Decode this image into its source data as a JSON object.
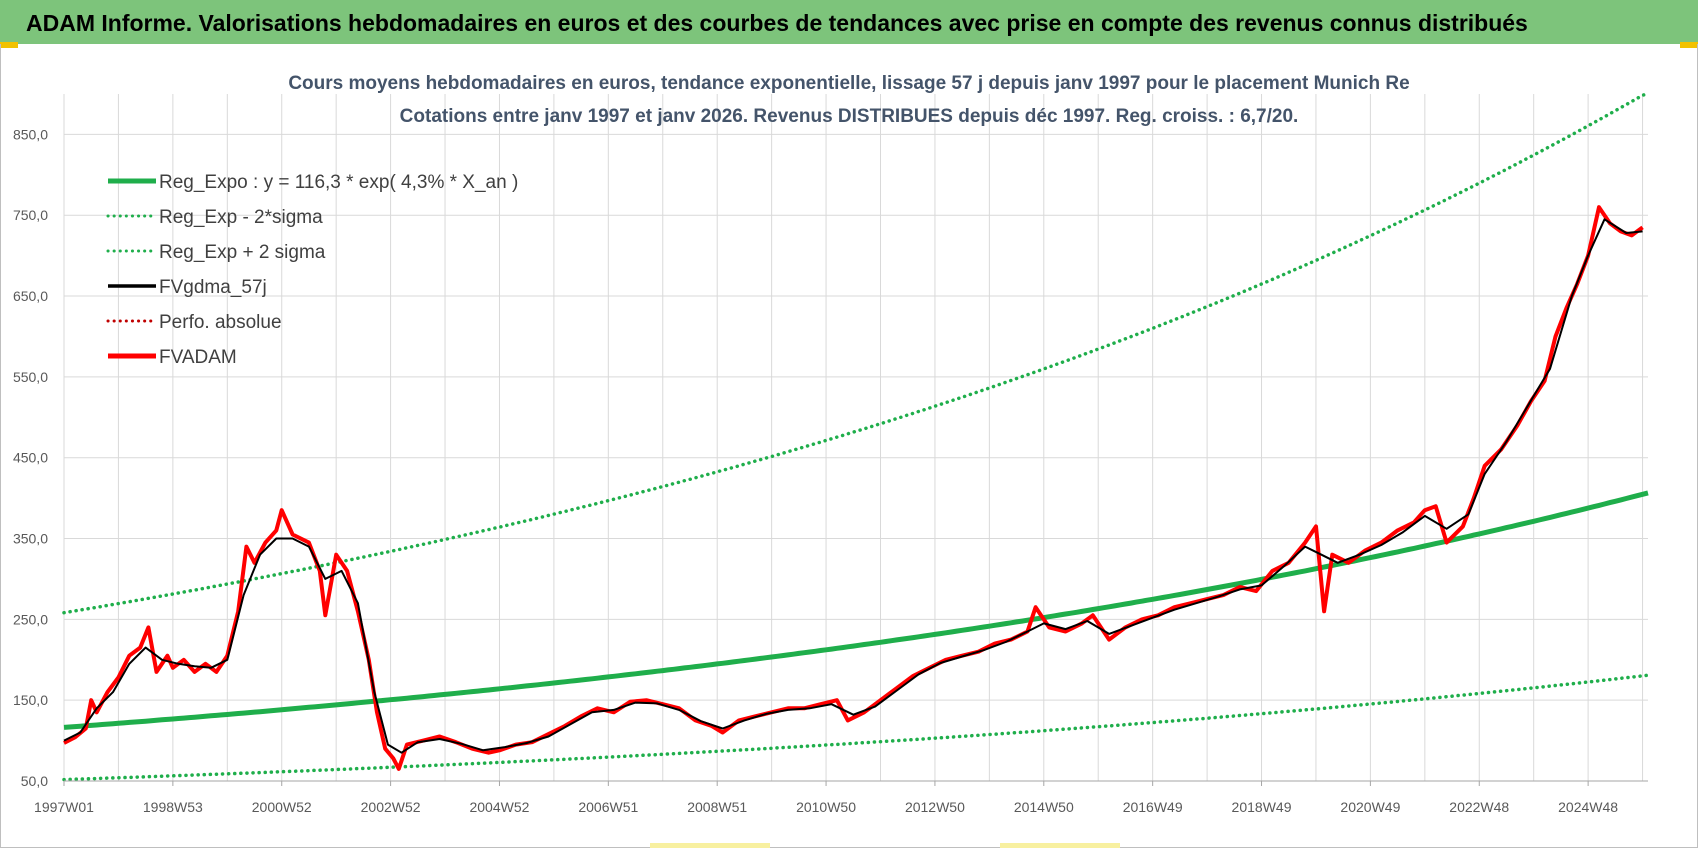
{
  "header": {
    "title": "ADAM Informe. Valorisations hebdomadaires en euros et des courbes de tendances avec prise en compte des revenus connus distribués"
  },
  "colors": {
    "banner": "#7dc47b",
    "trend": "#1fae4b",
    "smooth": "#000000",
    "price": "#ff0000",
    "perf": "#c00000",
    "grid": "#d9d9d9"
  },
  "chart_data": {
    "type": "line",
    "title_line1": "Cours moyens hebdomadaires en euros, tendance exponentielle, lissage 57 j depuis janv 1997 pour le placement Munich Re",
    "title_line2": "Cotations entre janv 1997 et janv 2026. Revenus DISTRIBUES depuis déc 1997. Reg. croiss. : 6,7/20.",
    "x_tick_labels": [
      "1997W01",
      "1998W53",
      "2000W52",
      "2002W52",
      "2004W52",
      "2006W51",
      "2008W51",
      "2010W50",
      "2012W50",
      "2014W50",
      "2016W49",
      "2018W49",
      "2020W49",
      "2022W48",
      "2024W48"
    ],
    "y_tick_labels": [
      "50,0",
      "150,0",
      "250,0",
      "350,0",
      "450,0",
      "550,0",
      "650,0",
      "750,0",
      "850,0"
    ],
    "y_ticks": [
      50,
      150,
      250,
      350,
      450,
      550,
      650,
      750,
      850
    ],
    "xlim": [
      1997.0,
      2026.1
    ],
    "ylim": [
      50,
      900
    ],
    "grid": true,
    "legend_position": "top-left",
    "legend": [
      {
        "label": "Reg_Expo : y = 116,3 * exp( 4,3% *  X_an )",
        "style": "solid-thick",
        "color": "#1fae4b"
      },
      {
        "label": "Reg_Exp - 2*sigma",
        "style": "dotted",
        "color": "#1fae4b"
      },
      {
        "label": "Reg_Exp + 2 sigma",
        "style": "dotted",
        "color": "#1fae4b"
      },
      {
        "label": "FVgdma_57j",
        "style": "solid",
        "color": "#000000"
      },
      {
        "label": "Perfo. absolue",
        "style": "dotted",
        "color": "#c00000"
      },
      {
        "label": "FVADAM",
        "style": "solid-thick",
        "color": "#ff0000"
      }
    ],
    "trend": {
      "a": 116.3,
      "rate": 0.043,
      "lower_factor": 0.445,
      "upper_factor": 2.22
    },
    "series": [
      {
        "name": "FVADAM",
        "points": [
          [
            1997.0,
            97
          ],
          [
            1997.2,
            104
          ],
          [
            1997.4,
            115
          ],
          [
            1997.5,
            150
          ],
          [
            1997.6,
            135
          ],
          [
            1997.8,
            160
          ],
          [
            1998.0,
            178
          ],
          [
            1998.2,
            205
          ],
          [
            1998.4,
            215
          ],
          [
            1998.55,
            240
          ],
          [
            1998.7,
            185
          ],
          [
            1998.9,
            205
          ],
          [
            1999.0,
            190
          ],
          [
            1999.2,
            200
          ],
          [
            1999.4,
            185
          ],
          [
            1999.6,
            195
          ],
          [
            1999.8,
            185
          ],
          [
            2000.0,
            205
          ],
          [
            2000.2,
            260
          ],
          [
            2000.35,
            340
          ],
          [
            2000.5,
            320
          ],
          [
            2000.7,
            345
          ],
          [
            2000.9,
            360
          ],
          [
            2001.0,
            385
          ],
          [
            2001.2,
            355
          ],
          [
            2001.5,
            345
          ],
          [
            2001.7,
            310
          ],
          [
            2001.8,
            255
          ],
          [
            2002.0,
            330
          ],
          [
            2002.2,
            310
          ],
          [
            2002.4,
            260
          ],
          [
            2002.6,
            200
          ],
          [
            2002.75,
            135
          ],
          [
            2002.9,
            90
          ],
          [
            2003.05,
            78
          ],
          [
            2003.15,
            65
          ],
          [
            2003.3,
            95
          ],
          [
            2003.6,
            100
          ],
          [
            2003.9,
            105
          ],
          [
            2004.2,
            98
          ],
          [
            2004.5,
            90
          ],
          [
            2004.8,
            85
          ],
          [
            2005.0,
            88
          ],
          [
            2005.3,
            95
          ],
          [
            2005.6,
            98
          ],
          [
            2005.9,
            108
          ],
          [
            2006.2,
            118
          ],
          [
            2006.5,
            130
          ],
          [
            2006.8,
            140
          ],
          [
            2007.1,
            135
          ],
          [
            2007.4,
            148
          ],
          [
            2007.7,
            150
          ],
          [
            2008.0,
            145
          ],
          [
            2008.3,
            140
          ],
          [
            2008.6,
            125
          ],
          [
            2008.9,
            118
          ],
          [
            2009.1,
            110
          ],
          [
            2009.4,
            125
          ],
          [
            2009.7,
            130
          ],
          [
            2010.0,
            135
          ],
          [
            2010.3,
            140
          ],
          [
            2010.6,
            140
          ],
          [
            2010.9,
            145
          ],
          [
            2011.2,
            150
          ],
          [
            2011.4,
            125
          ],
          [
            2011.7,
            135
          ],
          [
            2012.0,
            150
          ],
          [
            2012.3,
            165
          ],
          [
            2012.6,
            180
          ],
          [
            2012.9,
            190
          ],
          [
            2013.2,
            200
          ],
          [
            2013.5,
            205
          ],
          [
            2013.8,
            210
          ],
          [
            2014.1,
            220
          ],
          [
            2014.4,
            225
          ],
          [
            2014.7,
            235
          ],
          [
            2014.85,
            265
          ],
          [
            2015.1,
            240
          ],
          [
            2015.4,
            235
          ],
          [
            2015.7,
            245
          ],
          [
            2015.9,
            255
          ],
          [
            2016.2,
            225
          ],
          [
            2016.5,
            240
          ],
          [
            2016.8,
            250
          ],
          [
            2017.1,
            255
          ],
          [
            2017.4,
            265
          ],
          [
            2017.7,
            270
          ],
          [
            2018.0,
            275
          ],
          [
            2018.3,
            280
          ],
          [
            2018.6,
            290
          ],
          [
            2018.9,
            285
          ],
          [
            2019.2,
            310
          ],
          [
            2019.5,
            320
          ],
          [
            2019.8,
            345
          ],
          [
            2020.0,
            365
          ],
          [
            2020.15,
            260
          ],
          [
            2020.3,
            330
          ],
          [
            2020.6,
            320
          ],
          [
            2020.9,
            335
          ],
          [
            2021.2,
            345
          ],
          [
            2021.5,
            360
          ],
          [
            2021.8,
            370
          ],
          [
            2022.0,
            385
          ],
          [
            2022.2,
            390
          ],
          [
            2022.4,
            345
          ],
          [
            2022.7,
            365
          ],
          [
            2022.9,
            400
          ],
          [
            2023.1,
            440
          ],
          [
            2023.4,
            460
          ],
          [
            2023.7,
            490
          ],
          [
            2023.95,
            520
          ],
          [
            2024.2,
            545
          ],
          [
            2024.4,
            600
          ],
          [
            2024.6,
            635
          ],
          [
            2024.8,
            665
          ],
          [
            2025.0,
            700
          ],
          [
            2025.2,
            760
          ],
          [
            2025.4,
            740
          ],
          [
            2025.6,
            730
          ],
          [
            2025.8,
            725
          ],
          [
            2026.0,
            735
          ]
        ]
      },
      {
        "name": "FVgdma_57j",
        "points": [
          [
            1997.0,
            100
          ],
          [
            1997.3,
            110
          ],
          [
            1997.6,
            140
          ],
          [
            1997.9,
            160
          ],
          [
            1998.2,
            195
          ],
          [
            1998.5,
            215
          ],
          [
            1998.8,
            200
          ],
          [
            1999.1,
            195
          ],
          [
            1999.4,
            192
          ],
          [
            1999.7,
            190
          ],
          [
            2000.0,
            200
          ],
          [
            2000.3,
            280
          ],
          [
            2000.6,
            330
          ],
          [
            2000.9,
            350
          ],
          [
            2001.2,
            350
          ],
          [
            2001.5,
            340
          ],
          [
            2001.8,
            300
          ],
          [
            2002.1,
            310
          ],
          [
            2002.4,
            270
          ],
          [
            2002.7,
            160
          ],
          [
            2002.95,
            95
          ],
          [
            2003.2,
            85
          ],
          [
            2003.5,
            98
          ],
          [
            2003.9,
            102
          ],
          [
            2004.3,
            96
          ],
          [
            2004.7,
            88
          ],
          [
            2005.1,
            92
          ],
          [
            2005.5,
            97
          ],
          [
            2005.9,
            105
          ],
          [
            2006.3,
            120
          ],
          [
            2006.7,
            135
          ],
          [
            2007.1,
            138
          ],
          [
            2007.5,
            147
          ],
          [
            2007.9,
            146
          ],
          [
            2008.3,
            138
          ],
          [
            2008.7,
            124
          ],
          [
            2009.1,
            115
          ],
          [
            2009.5,
            125
          ],
          [
            2009.9,
            133
          ],
          [
            2010.3,
            138
          ],
          [
            2010.7,
            140
          ],
          [
            2011.1,
            145
          ],
          [
            2011.5,
            132
          ],
          [
            2011.9,
            142
          ],
          [
            2012.3,
            162
          ],
          [
            2012.7,
            182
          ],
          [
            2013.1,
            196
          ],
          [
            2013.5,
            204
          ],
          [
            2013.9,
            212
          ],
          [
            2014.3,
            222
          ],
          [
            2014.7,
            235
          ],
          [
            2015.0,
            245
          ],
          [
            2015.4,
            238
          ],
          [
            2015.8,
            248
          ],
          [
            2016.2,
            232
          ],
          [
            2016.6,
            242
          ],
          [
            2017.0,
            252
          ],
          [
            2017.4,
            262
          ],
          [
            2017.8,
            270
          ],
          [
            2018.2,
            278
          ],
          [
            2018.6,
            287
          ],
          [
            2019.0,
            292
          ],
          [
            2019.4,
            315
          ],
          [
            2019.8,
            340
          ],
          [
            2020.1,
            330
          ],
          [
            2020.4,
            320
          ],
          [
            2020.8,
            330
          ],
          [
            2021.2,
            342
          ],
          [
            2021.6,
            358
          ],
          [
            2022.0,
            378
          ],
          [
            2022.4,
            362
          ],
          [
            2022.8,
            380
          ],
          [
            2023.1,
            430
          ],
          [
            2023.5,
            470
          ],
          [
            2023.9,
            515
          ],
          [
            2024.3,
            560
          ],
          [
            2024.7,
            650
          ],
          [
            2025.0,
            700
          ],
          [
            2025.3,
            745
          ],
          [
            2025.7,
            728
          ],
          [
            2026.0,
            730
          ]
        ]
      }
    ]
  }
}
